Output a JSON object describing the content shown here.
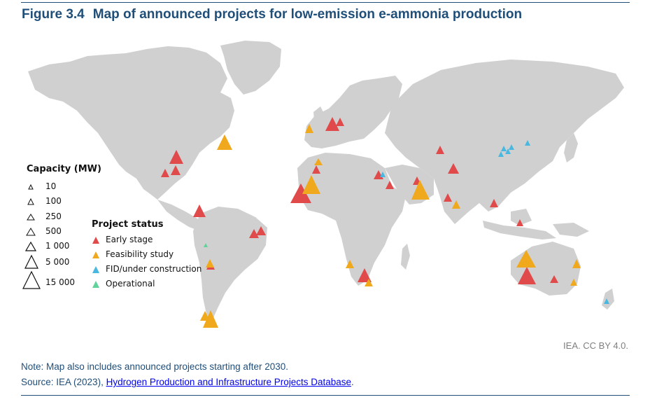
{
  "figure": {
    "number": "Figure 3.4",
    "title": "Map of announced projects for low-emission e-ammonia production"
  },
  "legend_capacity": {
    "title": "Capacity (MW)",
    "items": [
      "10",
      "100",
      "250",
      "500",
      "1 000",
      "5 000",
      "15 000"
    ]
  },
  "legend_status": {
    "title": "Project status",
    "items": [
      {
        "label": "Early stage",
        "color": "#e04a4a"
      },
      {
        "label": "Feasibility study",
        "color": "#f0a81c"
      },
      {
        "label": "FID/under construction",
        "color": "#49b8e0"
      },
      {
        "label": "Operational",
        "color": "#5fd39a"
      }
    ]
  },
  "credit": "IEA. CC BY 4.0.",
  "note": "Note: Map also includes announced projects starting after 2030.",
  "source": {
    "prefix": "Source: IEA (2023), ",
    "link_text": "Hydrogen Production and Infrastructure Projects Database",
    "suffix": "."
  }
}
